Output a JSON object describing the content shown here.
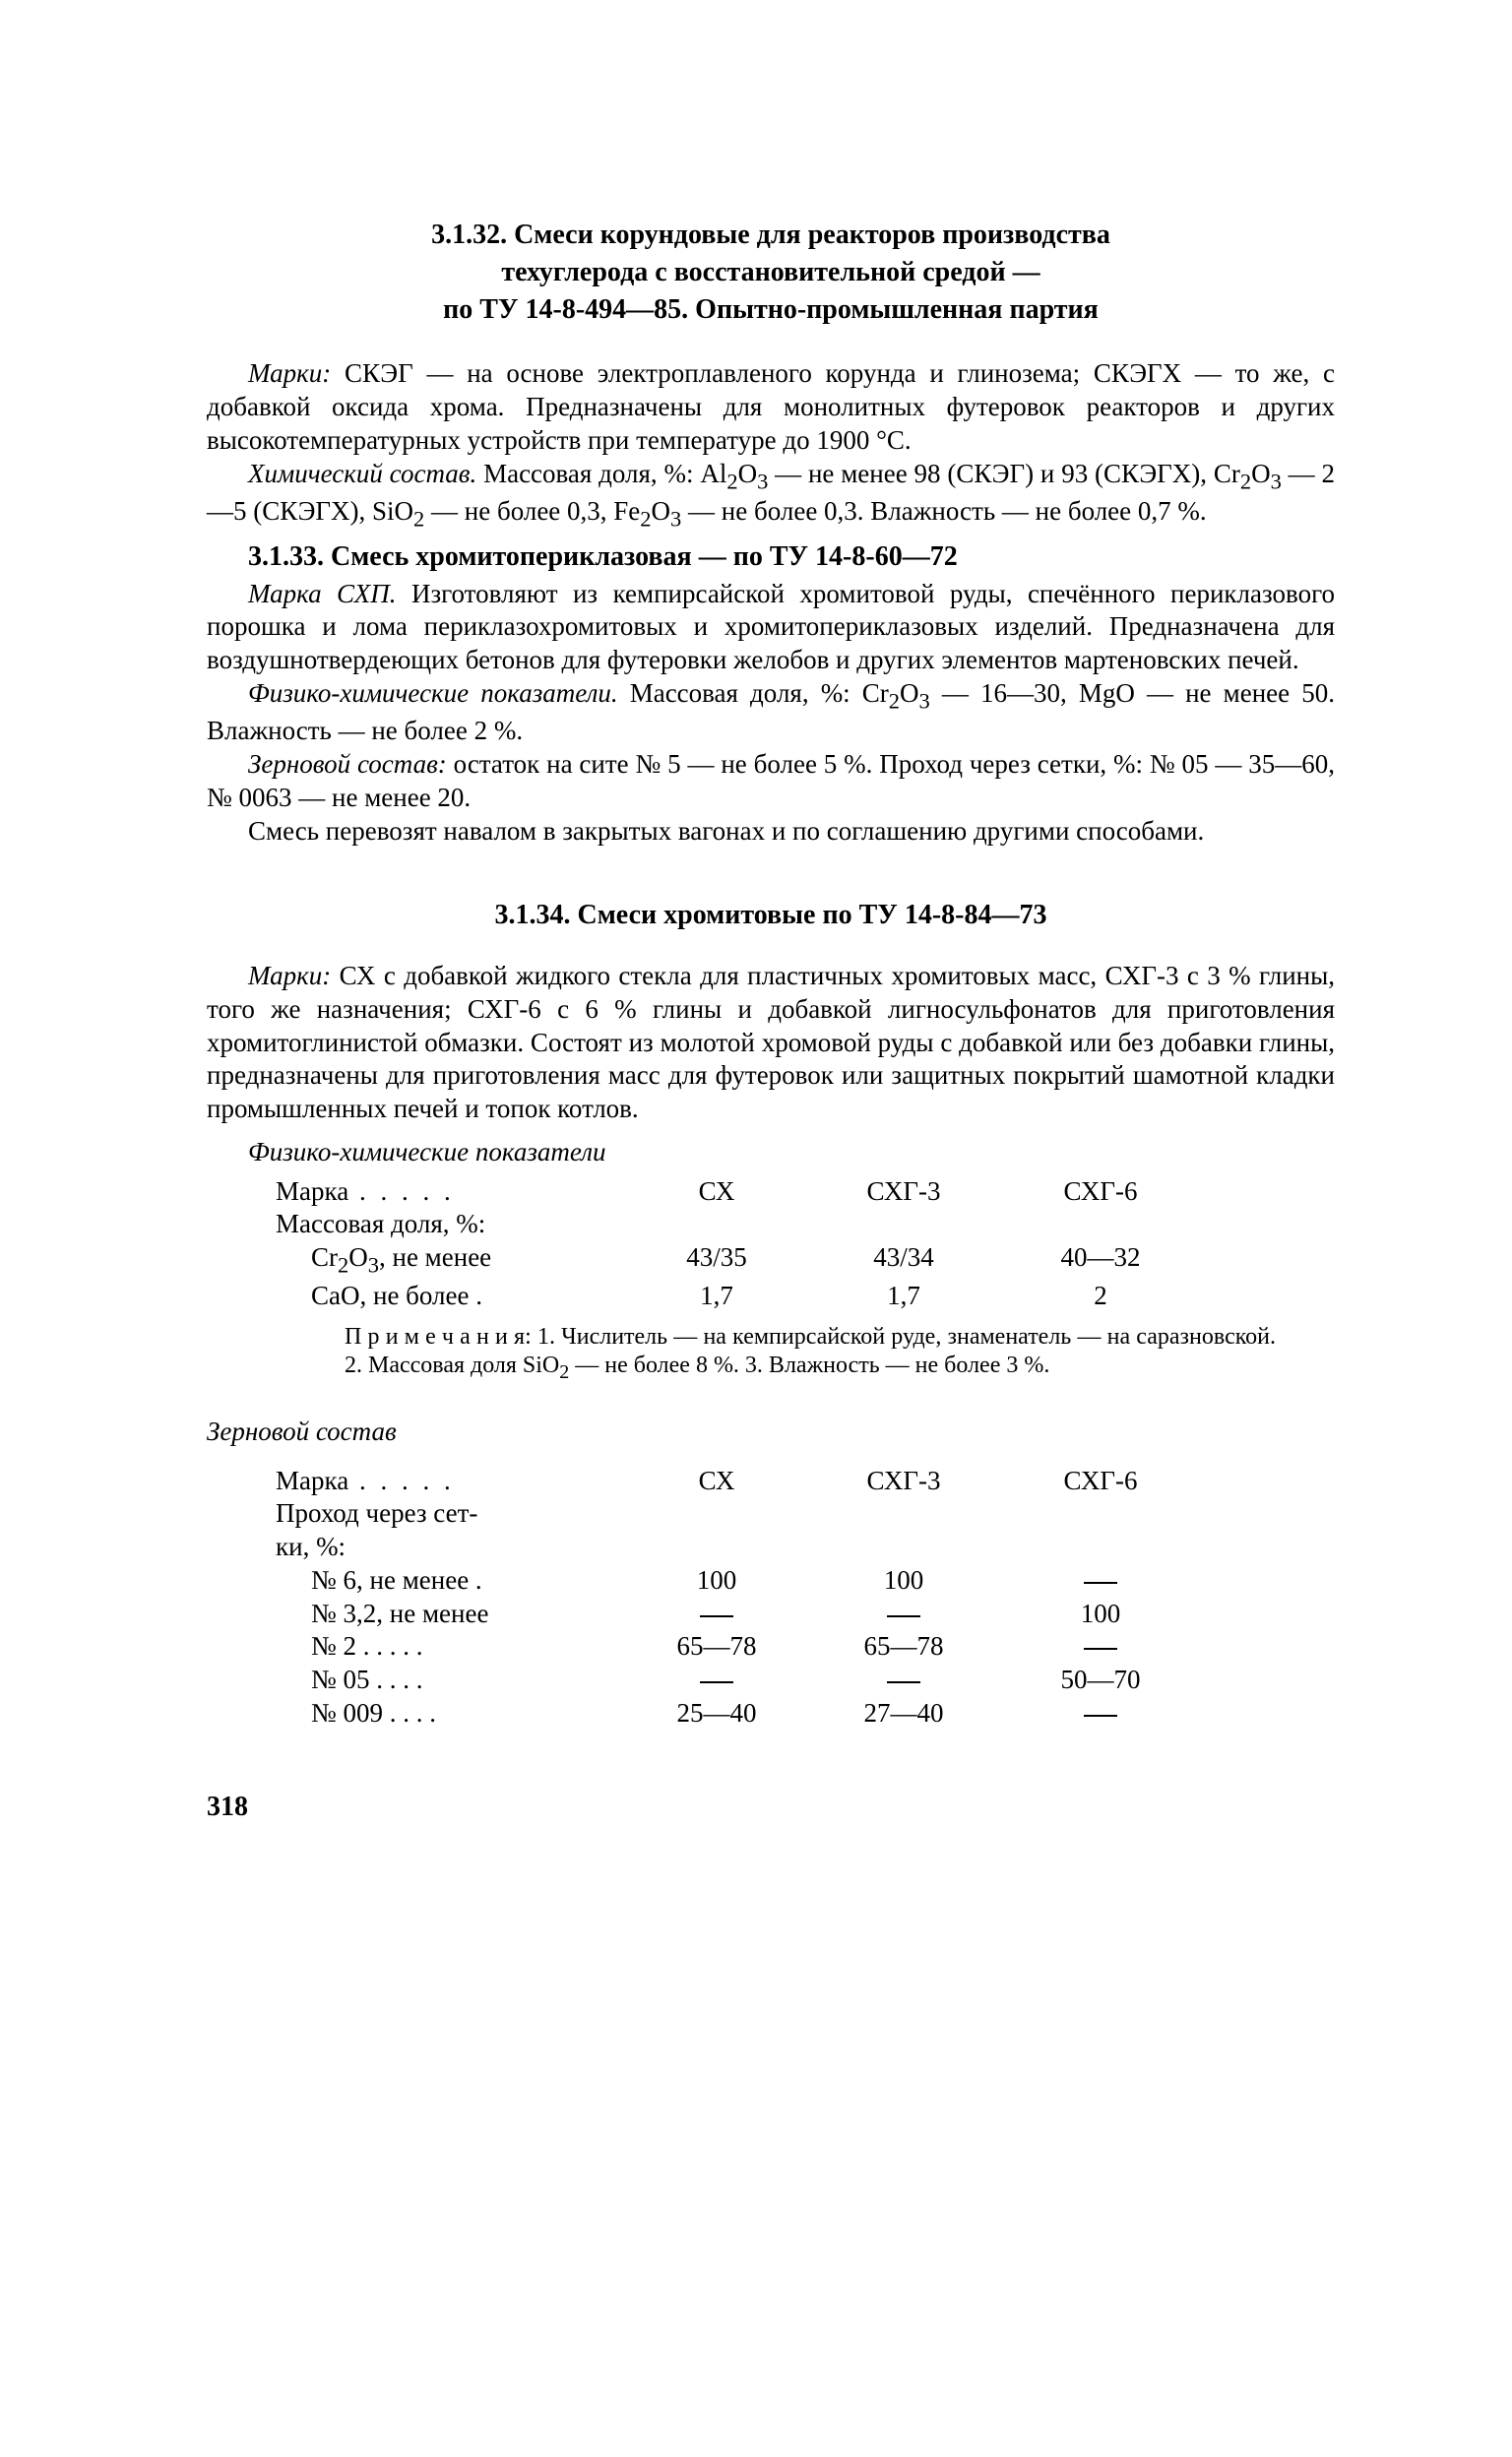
{
  "section_3132": {
    "heading_line1": "3.1.32. Смеси корундовые для реакторов производства",
    "heading_line2": "техуглерода с восстановительной средой —",
    "heading_line3": "по ТУ 14-8-494—85. Опытно-промышленная партия",
    "para1": "Марки: СКЭГ — на основе электроплавленого корунда и глинозема; СКЭГХ — то же, с добавкой оксида хрома. Предназначены для монолитных футеровок реакторов и других высокотемпературных устройств при температуре до 1900 °С.",
    "para2": "Химический состав. Массовая доля, %: Al₂O₃ — не менее 98 (СКЭГ) и 93 (СКЭГХ), Cr₂O₃ — 2—5 (СКЭГХ), SiO₂ — не более 0,3, Fe₂O₃ — не более 0,3. Влажность — не более 0,7 %."
  },
  "section_3133": {
    "heading": "3.1.33. Смесь хромитопериклазовая — по ТУ 14-8-60—72",
    "para1": "Марка СХП. Изготовляют из кемпирсайской хромитовой руды, спечённого периклазового порошка и лома периклазохромитовых и хромитопериклазовых изделий. Предназначена для воздушнотвердеющих бетонов для футеровки желобов и других элементов мартеновских печей.",
    "para2": "Физико-химические показатели. Массовая доля, %: Cr₂O₃ — 16—30, MgO — не менее 50. Влажность — не более 2 %.",
    "para3": "Зерновой состав: остаток на сите № 5 — не более 5 %. Проход через сетки, %: № 05 — 35—60, № 0063 — не менее 20.",
    "para4": "Смесь перевозят навалом в закрытых вагонах и по соглашению другими способами."
  },
  "section_3134": {
    "heading": "3.1.34. Смеси хромитовые по ТУ 14-8-84—73",
    "para1": "Марки: СХ с добавкой жидкого стекла для пластичных хромитовых масс, СХГ-3 с 3 % глины, того же назначения; СХГ-6 с 6 % глины и добавкой лигносульфонатов для приготовления хромитоглинистой обмазки. Состоят из молотой хромовой руды с добавкой или без добавки глины, предназначены для приготовления масс для футеровок или защитных покрытий шамотной кладки промышленных печей и топок котлов.",
    "physchem_title": "Физико-химические показатели",
    "table1": {
      "head_label": "Марка",
      "dots": " .   .   .   .   .",
      "col1": "СХ",
      "col2": "СХГ-3",
      "col3": "СХГ-6",
      "massline": "Массовая доля, %:",
      "row1_label": "Cr₂O₃, не менее",
      "row1": [
        "43/35",
        "43/34",
        "40—32"
      ],
      "row2_label": "CaO, не более  .",
      "row2": [
        "1,7",
        "1,7",
        "2"
      ]
    },
    "note": "П р и м е ч а н и я: 1. Числитель — на кемпирсайской руде, знаменатель — на саразновской. 2. Массовая доля SiO₂ — не более 8 %. 3. Влажность — не более 3 %.",
    "grain_title": "Зерновой состав",
    "table2": {
      "head_label": "Марка",
      "dots": " .   .   .   .   .",
      "col1": "СХ",
      "col2": "СХГ-3",
      "col3": "СХГ-6",
      "passline": "Проход через сет-",
      "passline2": "ки, %:",
      "rows": [
        {
          "label": "№ 6, не менее .",
          "c1": "100",
          "c2": "100",
          "c3": "—"
        },
        {
          "label": "№ 3,2, не менее",
          "c1": "—",
          "c2": "—",
          "c3": "100"
        },
        {
          "label": "№ 2 .   .   .   .   .",
          "c1": "65—78",
          "c2": "65—78",
          "c3": "—"
        },
        {
          "label": "№ 05   .   .   .   .",
          "c1": "—",
          "c2": "—",
          "c3": "50—70"
        },
        {
          "label": "№ 009   .   .   .   .",
          "c1": "25—40",
          "c2": "27—40",
          "c3": "—"
        }
      ]
    }
  },
  "page_number": "318"
}
